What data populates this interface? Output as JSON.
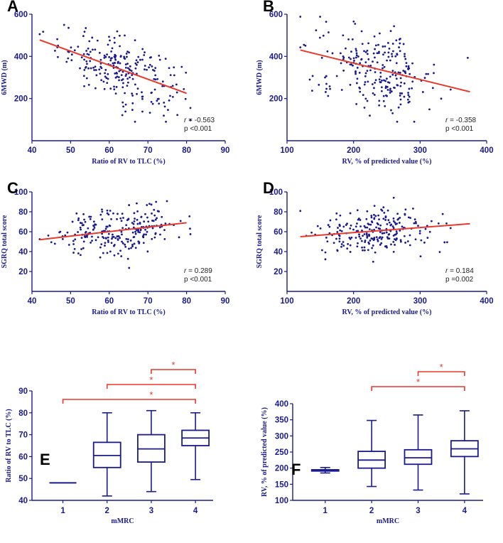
{
  "colors": {
    "axis": "#1a1a8c",
    "points": "#1a1a8c",
    "fit": "#e8392a",
    "box": "#1a1a8c",
    "sig": "#e8392a"
  },
  "chart_data": [
    {
      "panel": "A",
      "type": "scatter",
      "xlabel": "Ratio of RV to TLC (%)",
      "ylabel": "6MWD (m)",
      "xlim": [
        40,
        90
      ],
      "ylim": [
        0,
        600
      ],
      "xticks": [
        40,
        50,
        60,
        70,
        80,
        90
      ],
      "yticks": [
        200,
        400,
        600
      ],
      "fit": {
        "x": [
          42,
          80
        ],
        "y": [
          478,
          225
        ]
      },
      "r_label": "r",
      "r_value": "= -0.563",
      "p_label": "p <0.001",
      "n_points": 240,
      "x_center": 63,
      "x_spread": 8,
      "resid_sd": 75
    },
    {
      "panel": "B",
      "type": "scatter",
      "xlabel": "RV, % of predicted value (%)",
      "ylabel": "6MWD (m)",
      "xlim": [
        100,
        400
      ],
      "ylim": [
        0,
        600
      ],
      "xticks": [
        100,
        200,
        300,
        400
      ],
      "yticks": [
        200,
        400,
        600
      ],
      "fit": {
        "x": [
          120,
          375
        ],
        "y": [
          430,
          232
        ]
      },
      "r_label": "r",
      "r_value": "= -0.358",
      "p_label": "p <0.001",
      "n_points": 240,
      "x_center": 235,
      "x_spread": 45,
      "resid_sd": 95
    },
    {
      "panel": "C",
      "type": "scatter",
      "xlabel": "Ratio of RV to TLC (%)",
      "ylabel": "SGRQ total score",
      "xlim": [
        40,
        90
      ],
      "ylim": [
        0,
        100
      ],
      "xticks": [
        40,
        50,
        60,
        70,
        80,
        90
      ],
      "yticks": [
        20,
        40,
        60,
        80,
        100
      ],
      "fit": {
        "x": [
          42,
          80
        ],
        "y": [
          52,
          69
        ]
      },
      "r_label": "r",
      "r_value": "= 0.289",
      "p_label": "p <0.001",
      "n_points": 240,
      "x_center": 63,
      "x_spread": 8,
      "resid_sd": 12
    },
    {
      "panel": "D",
      "type": "scatter",
      "xlabel": "RV, % of predicted value (%)",
      "ylabel": "SGRQ total score",
      "xlim": [
        100,
        400
      ],
      "ylim": [
        0,
        100
      ],
      "xticks": [
        100,
        200,
        300,
        400
      ],
      "yticks": [
        20,
        40,
        60,
        80,
        100
      ],
      "fit": {
        "x": [
          120,
          375
        ],
        "y": [
          55,
          68
        ]
      },
      "r_label": "r",
      "r_value": "= 0.184",
      "p_label": "p =0.002",
      "n_points": 240,
      "x_center": 235,
      "x_spread": 45,
      "resid_sd": 12
    },
    {
      "panel": "E",
      "type": "box",
      "xlabel": "mMRC",
      "ylabel": "Ratio of RV to TLC (%)",
      "ylim": [
        40,
        90
      ],
      "yticks": [
        40,
        50,
        60,
        70,
        80,
        90
      ],
      "categories": [
        "1",
        "2",
        "3",
        "4"
      ],
      "boxes": [
        {
          "min": 48,
          "q1": 48,
          "median": 48,
          "q3": 48,
          "max": 48
        },
        {
          "min": 42,
          "q1": 55,
          "median": 60.5,
          "q3": 66.5,
          "max": 80
        },
        {
          "min": 44,
          "q1": 57.5,
          "median": 63.5,
          "q3": 70,
          "max": 81
        },
        {
          "min": 49.5,
          "q1": 65,
          "median": 68.5,
          "q3": 72,
          "max": 80
        }
      ],
      "significance": [
        {
          "from": "3",
          "to": "4",
          "label": "*"
        },
        {
          "from": "2",
          "to": "4",
          "label": "*"
        },
        {
          "from": "1",
          "to": "4",
          "label": "*"
        }
      ]
    },
    {
      "panel": "F",
      "type": "box",
      "xlabel": "mMRC",
      "ylabel": "RV, % of predicted value (%)",
      "ylim": [
        100,
        400
      ],
      "yticks": [
        100,
        150,
        200,
        250,
        300,
        350,
        400
      ],
      "categories": [
        "1",
        "2",
        "3",
        "4"
      ],
      "boxes": [
        {
          "min": 185,
          "q1": 191,
          "median": 193,
          "q3": 195,
          "max": 202
        },
        {
          "min": 143,
          "q1": 200,
          "median": 225,
          "q3": 252,
          "max": 348
        },
        {
          "min": 132,
          "q1": 212,
          "median": 232,
          "q3": 257,
          "max": 365
        },
        {
          "min": 120,
          "q1": 236,
          "median": 260,
          "q3": 285,
          "max": 378
        }
      ],
      "significance": [
        {
          "from": "3",
          "to": "4",
          "label": "*"
        },
        {
          "from": "2",
          "to": "4",
          "label": "*"
        }
      ]
    }
  ]
}
